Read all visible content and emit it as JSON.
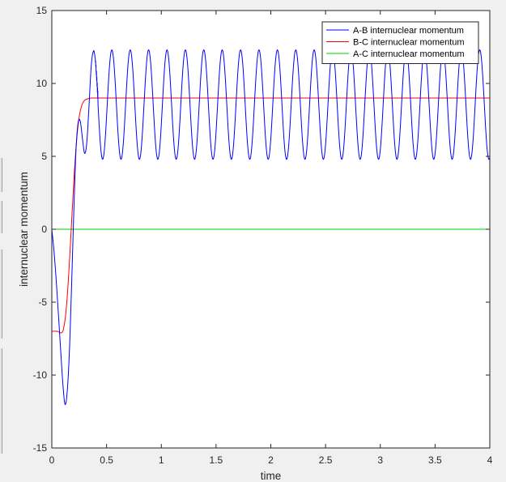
{
  "chart_data": {
    "type": "line",
    "title": "",
    "xlabel": "time",
    "ylabel": "internuclear momentum",
    "xlim": [
      0,
      4
    ],
    "ylim": [
      -15,
      15
    ],
    "xticks": [
      0,
      0.5,
      1,
      1.5,
      2,
      2.5,
      3,
      3.5,
      4
    ],
    "xtick_labels": [
      "0",
      "0.5",
      "1",
      "1.5",
      "2",
      "2.5",
      "3",
      "3.5",
      "4"
    ],
    "yticks": [
      -15,
      -10,
      -5,
      0,
      5,
      10,
      15
    ],
    "ytick_labels": [
      "-15",
      "-10",
      "-5",
      "0",
      "5",
      "10",
      "15"
    ],
    "grid": false,
    "legend_position": "top-right",
    "series": [
      {
        "name": "A-B internuclear momentum",
        "color": "#0000ff",
        "x": [
          0.0,
          0.02,
          0.04,
          0.06,
          0.08,
          0.1,
          0.12,
          0.14,
          0.16,
          0.18,
          0.2,
          0.22,
          0.24,
          0.26,
          0.28,
          0.3,
          0.32,
          0.34,
          0.36,
          0.38,
          0.4,
          0.42
        ],
        "y": [
          0.0,
          -1.5,
          -3.5,
          -5.8,
          -8.2,
          -10.5,
          -12.0,
          -11.2,
          -8.5,
          -4.0,
          1.0,
          5.3,
          7.3,
          7.4,
          6.2,
          5.2,
          6.0,
          8.5,
          11.2,
          12.2,
          11.5,
          9.5
        ],
        "oscillation": {
          "x_start": 0.38,
          "x_end": 4.0,
          "min": 4.8,
          "max": 12.3,
          "period": 0.168
        }
      },
      {
        "name": "B-C internuclear momentum",
        "color": "#ff0000",
        "x": [
          0.0,
          0.05,
          0.09,
          0.11,
          0.13,
          0.15,
          0.17,
          0.19,
          0.21,
          0.23,
          0.25,
          0.27,
          0.29,
          0.31,
          0.33,
          0.36,
          0.4,
          0.5,
          1.0,
          2.0,
          3.0,
          4.0
        ],
        "y": [
          -7.0,
          -7.0,
          -7.1,
          -6.7,
          -5.6,
          -3.6,
          -1.0,
          1.8,
          4.4,
          6.4,
          7.7,
          8.4,
          8.75,
          8.9,
          8.95,
          9.0,
          9.0,
          9.0,
          9.0,
          9.0,
          9.0,
          9.0
        ]
      },
      {
        "name": "A-C internuclear momentum",
        "color": "#00cc00",
        "x": [
          0,
          4
        ],
        "y": [
          0,
          0
        ]
      }
    ]
  }
}
